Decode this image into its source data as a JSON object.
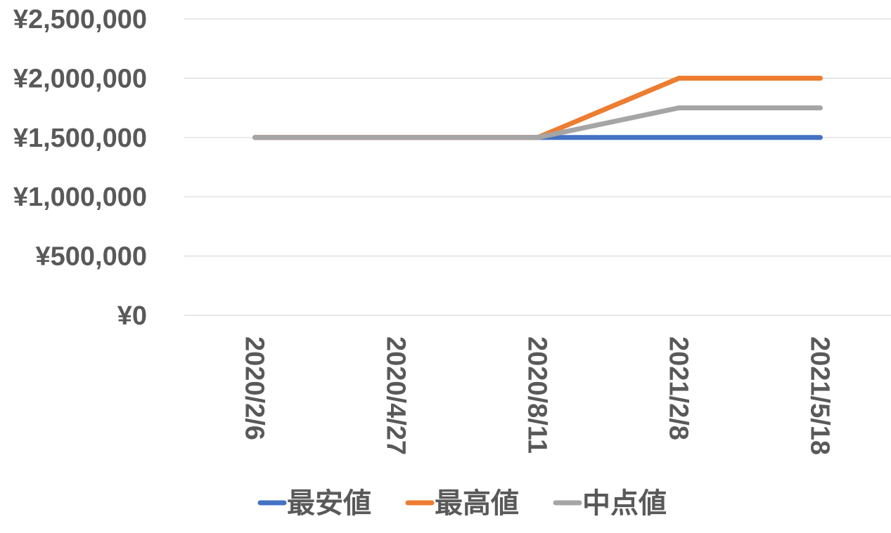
{
  "chart_data": {
    "type": "line",
    "title": "",
    "xlabel": "",
    "ylabel": "",
    "categories": [
      "2020/2/6",
      "2020/4/27",
      "2020/8/11",
      "2021/2/8",
      "2021/5/18"
    ],
    "series": [
      {
        "name": "最安値",
        "color": "#4472c4",
        "values": [
          1500000,
          1500000,
          1500000,
          1500000,
          1500000
        ]
      },
      {
        "name": "最高値",
        "color": "#ed7d31",
        "values": [
          1500000,
          1500000,
          1500000,
          2000000,
          2000000
        ]
      },
      {
        "name": "中点値",
        "color": "#a5a5a5",
        "values": [
          1500000,
          1500000,
          1500000,
          1750000,
          1750000
        ]
      }
    ],
    "ylim": [
      0,
      2500000
    ],
    "yticks": [
      0,
      500000,
      1000000,
      1500000,
      2000000,
      2500000
    ],
    "ytick_labels": [
      "¥0",
      "¥500,000",
      "¥1,000,000",
      "¥1,500,000",
      "¥2,000,000",
      "¥2,500,000"
    ],
    "grid": true,
    "legend_position": "bottom"
  }
}
